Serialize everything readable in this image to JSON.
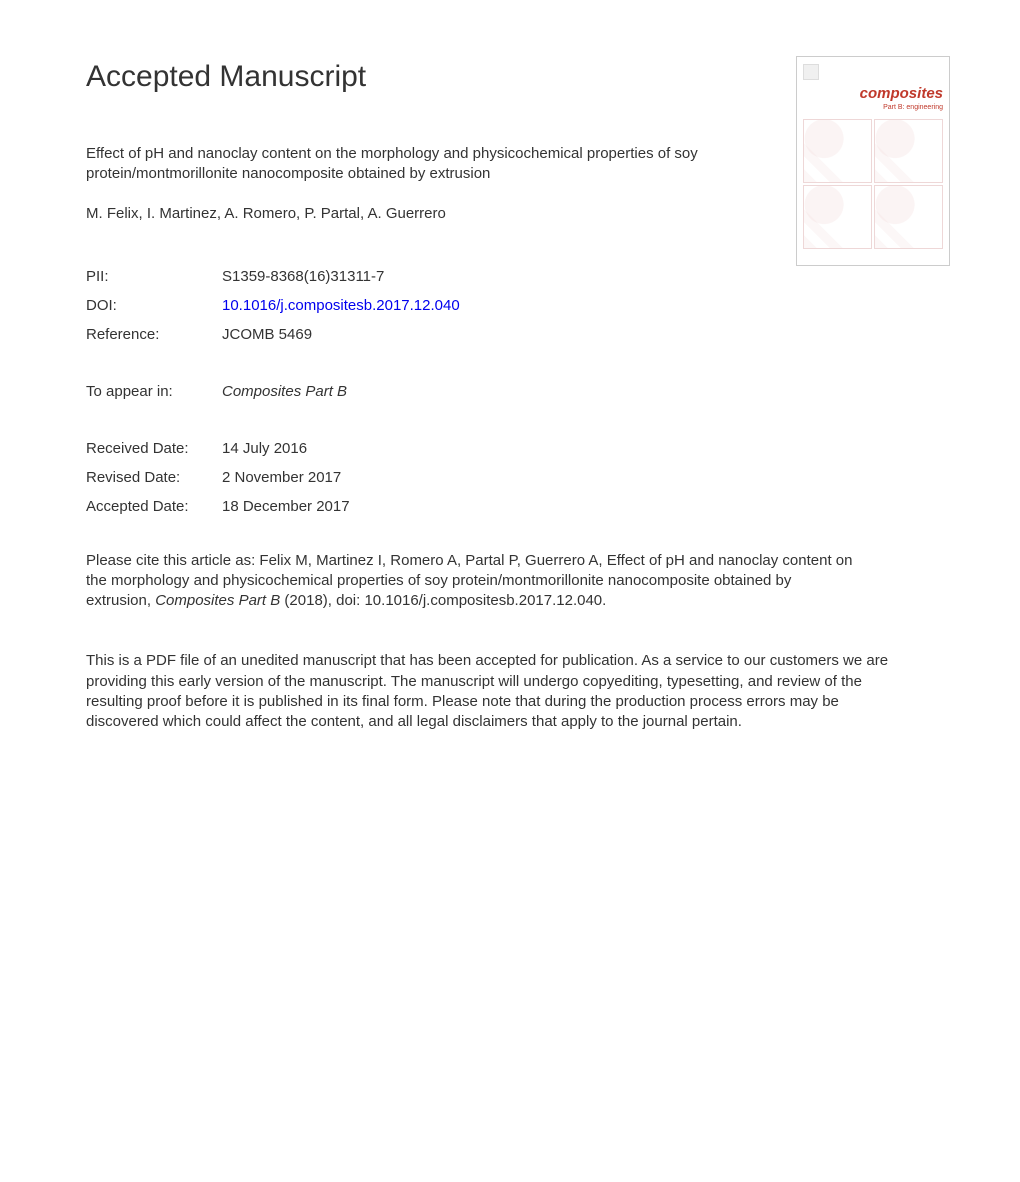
{
  "heading": "Accepted Manuscript",
  "cover": {
    "journal_title": "composites",
    "journal_subtitle": "Part B: engineering"
  },
  "article_title": "Effect of pH and nanoclay content on the morphology and physicochemical properties of soy protein/montmorillonite nanocomposite obtained by extrusion",
  "authors": "M. Felix, I. Martinez, A. Romero, P. Partal, A. Guerrero",
  "meta": {
    "pii_label": "PII:",
    "pii_value": "S1359-8368(16)31311-7",
    "doi_label": "DOI:",
    "doi_value": "10.1016/j.compositesb.2017.12.040",
    "ref_label": "Reference:",
    "ref_value": "JCOMB 5469",
    "appear_label": "To appear in:",
    "appear_value": "Composites Part B",
    "received_label": "Received Date:",
    "received_value": "14 July 2016",
    "revised_label": "Revised Date:",
    "revised_value": "2 November 2017",
    "accepted_label": "Accepted Date:",
    "accepted_value": "18 December 2017"
  },
  "citation": {
    "prefix": "Please cite this article as: Felix M, Martinez I, Romero A, Partal P, Guerrero A, Effect of pH and nanoclay content on the morphology and physicochemical properties of soy protein/montmorillonite nanocomposite obtained by extrusion, ",
    "journal": "Composites Part B",
    "suffix": " (2018), doi: 10.1016/j.compositesb.2017.12.040."
  },
  "disclaimer": "This is a PDF file of an unedited manuscript that has been accepted for publication. As a service to our customers we are providing this early version of the manuscript. The manuscript will undergo copyediting, typesetting, and review of the resulting proof before it is published in its final form. Please note that during the production process errors may be discovered which could affect the content, and all legal disclaimers that apply to the journal pertain."
}
